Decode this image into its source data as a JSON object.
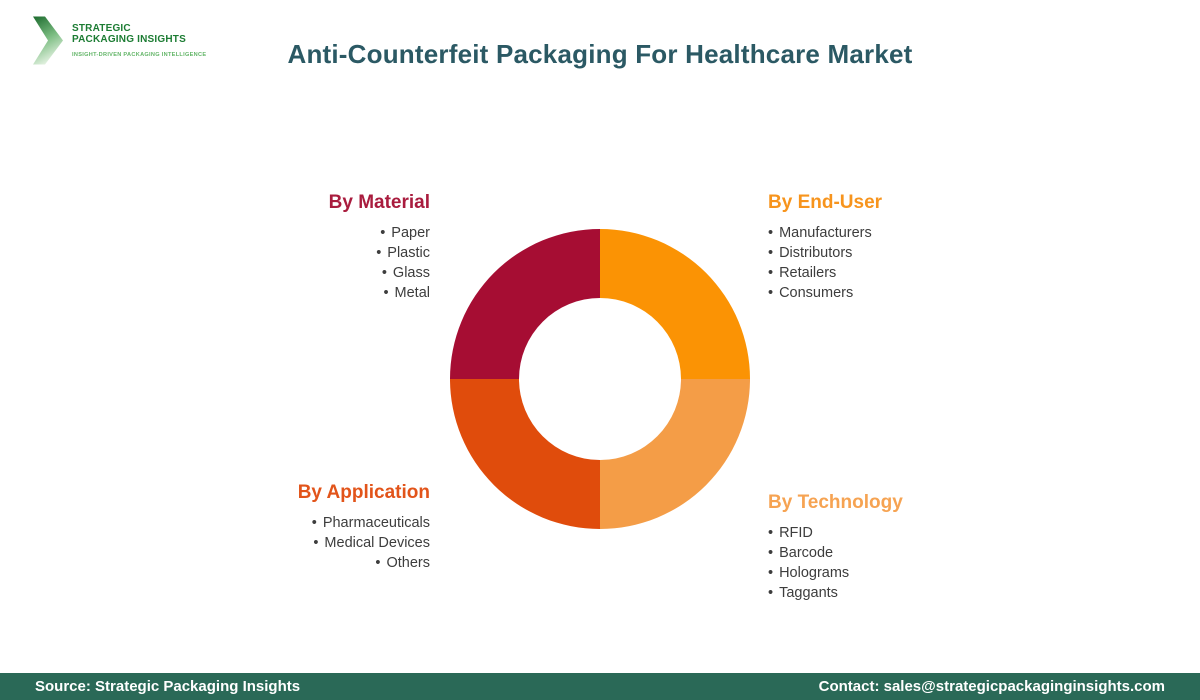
{
  "logo": {
    "line1": "STRATEGIC",
    "line2": "PACKAGING INSIGHTS",
    "tagline": "INSIGHT-DRIVEN PACKAGING INTELLIGENCE",
    "text_color": "#1c7c33",
    "tagline_color": "#63b568",
    "chevron_gradient": [
      "#1b6a2d",
      "#e0f0de"
    ]
  },
  "header": {
    "title": "Anti-Counterfeit Packaging For Healthcare Market",
    "title_color": "#2b5964"
  },
  "groups": [
    {
      "id": "material",
      "title": "By Material",
      "color": "#a91c3e",
      "items": [
        "Paper",
        "Plastic",
        "Glass",
        "Metal"
      ]
    },
    {
      "id": "end-user",
      "title": "By End-User",
      "color": "#f7941d",
      "items": [
        "Manufacturers",
        "Distributors",
        "Retailers",
        "Consumers"
      ]
    },
    {
      "id": "application",
      "title": "By Application",
      "color": "#e2541a",
      "items": [
        "Pharmaceuticals",
        "Medical Devices",
        "Others"
      ]
    },
    {
      "id": "technology",
      "title": "By Technology",
      "color": "#f6a352",
      "items": [
        "RFID",
        "Barcode",
        "Holograms",
        "Taggants"
      ]
    }
  ],
  "chart_data": {
    "type": "pie",
    "donut": true,
    "title": "Anti-Counterfeit Packaging For Healthcare Market segmentation wheel",
    "start_at": "12-oclock",
    "direction": "clockwise",
    "inner_radius_ratio": 0.54,
    "segments": [
      {
        "label": "By End-User",
        "value": 25,
        "color": "#fb9304"
      },
      {
        "label": "By Technology",
        "value": 25,
        "color": "#f49d47"
      },
      {
        "label": "By Application",
        "value": 25,
        "color": "#e04c0c"
      },
      {
        "label": "By Material",
        "value": 25,
        "color": "#a60d33"
      }
    ]
  },
  "footer": {
    "source": "Source: Strategic Packaging Insights",
    "contact": "Contact: sales@strategicpackaginginsights.com",
    "bg_color": "#2a6957"
  }
}
